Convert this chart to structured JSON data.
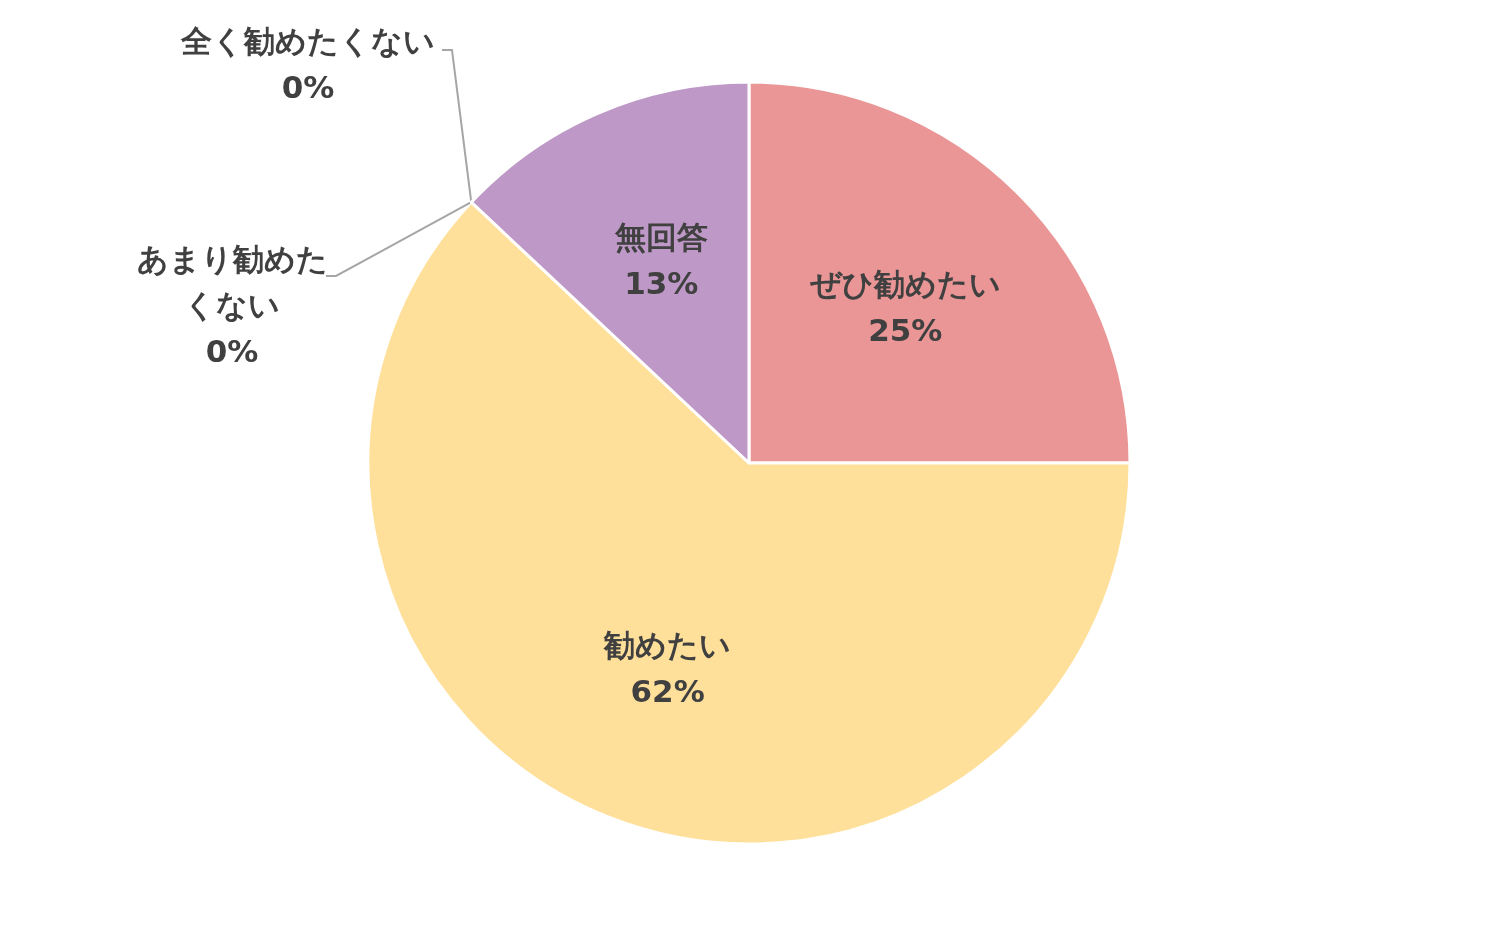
{
  "chart_data": {
    "type": "pie",
    "categories": [
      "ぜひ勧めたい",
      "勧めたい",
      "あまり勧めたくない",
      "全く勧めたくない",
      "無回答"
    ],
    "values": [
      25,
      62,
      0,
      0,
      13
    ],
    "value_labels": [
      "25%",
      "62%",
      "0%",
      "0%",
      "13%"
    ],
    "colors": [
      "#ea9696",
      "#ffe09a",
      "#9dc3e6",
      "#a9d18e",
      "#be98c6"
    ]
  }
}
